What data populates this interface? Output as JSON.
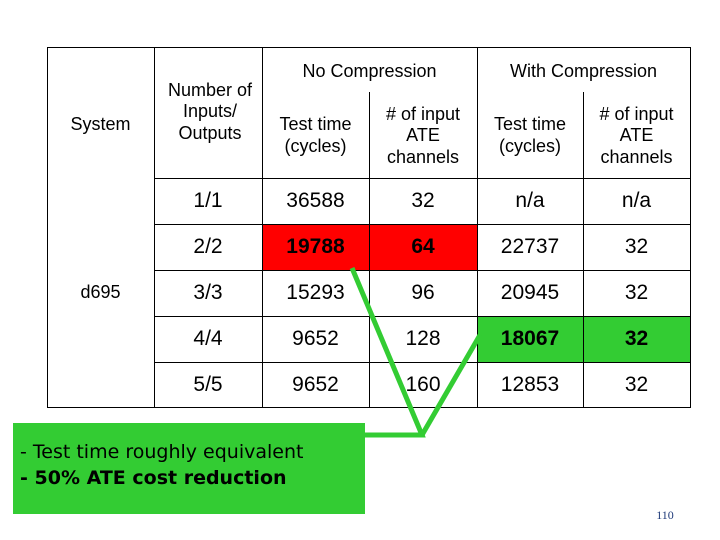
{
  "table": {
    "header": {
      "system": "System",
      "io": "Number of Inputs/ Outputs",
      "no_compression": "No Compression",
      "with_compression": "With Compression",
      "test_time": "Test time (cycles)",
      "ate_channels": "# of input ATE channels"
    },
    "system_name": "d695",
    "columns": [
      "Number of Inputs/ Outputs",
      "No Compression: Test time (cycles)",
      "No Compression: # of input ATE channels",
      "With Compression: Test time (cycles)",
      "With Compression: # of input ATE channels"
    ],
    "rows": [
      {
        "io": "1/1",
        "nc_time": "36588",
        "nc_channels": "32",
        "wc_time": "n/a",
        "wc_channels": "n/a"
      },
      {
        "io": "2/2",
        "nc_time": "19788",
        "nc_channels": "64",
        "wc_time": "22737",
        "wc_channels": "32"
      },
      {
        "io": "3/3",
        "nc_time": "15293",
        "nc_channels": "96",
        "wc_time": "20945",
        "wc_channels": "32"
      },
      {
        "io": "4/4",
        "nc_time": "9652",
        "nc_channels": "128",
        "wc_time": "18067",
        "wc_channels": "32"
      },
      {
        "io": "5/5",
        "nc_time": "9652",
        "nc_channels": "160",
        "wc_time": "12853",
        "wc_channels": "32"
      }
    ]
  },
  "highlights": {
    "red_color": "#ff0000",
    "green_color": "#33cc33"
  },
  "callout": {
    "line1": "- Test time roughly equivalent",
    "line2": "- 50% ATE cost reduction"
  },
  "page_number": "110"
}
